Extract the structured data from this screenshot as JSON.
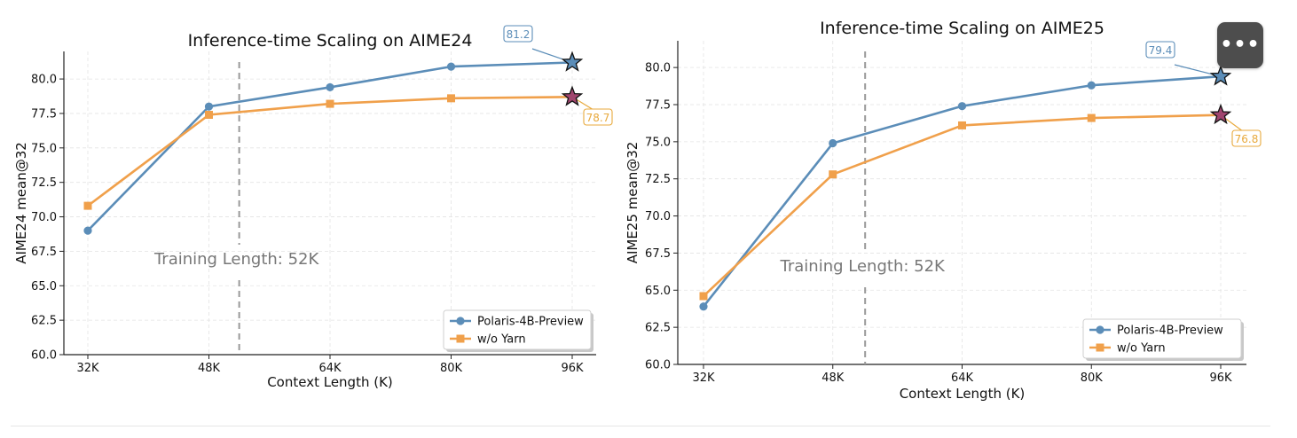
{
  "more_button": {
    "label": "•••",
    "icon": "more-options-icon"
  },
  "chart_data": [
    {
      "type": "line",
      "title": "Inference-time Scaling on AIME24",
      "xlabel": "Context Length (K)",
      "ylabel": "AIME24 mean@32",
      "categories": [
        "32K",
        "48K",
        "64K",
        "80K",
        "96K"
      ],
      "x": [
        32,
        48,
        64,
        80,
        96
      ],
      "ylim": [
        60.0,
        82.0
      ],
      "yticks": [
        60.0,
        62.5,
        65.0,
        67.5,
        70.0,
        72.5,
        75.0,
        77.5,
        80.0
      ],
      "ytick_labels": [
        "60.0",
        "62.5",
        "65.0",
        "67.5",
        "70.0",
        "72.5",
        "75.0",
        "77.5",
        "80.0"
      ],
      "grid": true,
      "legend_position": "bottom-right",
      "series": [
        {
          "name": "Polaris-4B-Preview",
          "values": [
            69.0,
            78.0,
            79.4,
            80.9,
            81.2
          ],
          "color": "#5b8db8",
          "marker": "circle"
        },
        {
          "name": "w/o Yarn",
          "values": [
            70.8,
            77.4,
            78.2,
            78.6,
            78.7
          ],
          "color": "#f0a04b",
          "marker": "square"
        }
      ],
      "annotations": [
        {
          "text": "81.2",
          "series": 0,
          "color": "#5b8db8",
          "marker": "star",
          "star_color": "#5b8db8"
        },
        {
          "text": "78.7",
          "series": 1,
          "color": "#e8a93c",
          "marker": "star",
          "star_color": "#a0456e"
        }
      ],
      "vline": {
        "x": 52,
        "label": "Training Length: 52K"
      }
    },
    {
      "type": "line",
      "title": "Inference-time Scaling on AIME25",
      "xlabel": "Context Length (K)",
      "ylabel": "AIME25 mean@32",
      "categories": [
        "32K",
        "48K",
        "64K",
        "80K",
        "96K"
      ],
      "x": [
        32,
        48,
        64,
        80,
        96
      ],
      "ylim": [
        60.0,
        81.8
      ],
      "yticks": [
        60.0,
        62.5,
        65.0,
        67.5,
        70.0,
        72.5,
        75.0,
        77.5,
        80.0
      ],
      "ytick_labels": [
        "60.0",
        "62.5",
        "65.0",
        "67.5",
        "70.0",
        "72.5",
        "75.0",
        "77.5",
        "80.0"
      ],
      "grid": true,
      "legend_position": "bottom-right",
      "series": [
        {
          "name": "Polaris-4B-Preview",
          "values": [
            63.9,
            74.9,
            77.4,
            78.8,
            79.4
          ],
          "color": "#5b8db8",
          "marker": "circle"
        },
        {
          "name": "w/o Yarn",
          "values": [
            64.6,
            72.8,
            76.1,
            76.6,
            76.8
          ],
          "color": "#f0a04b",
          "marker": "square"
        }
      ],
      "annotations": [
        {
          "text": "79.4",
          "series": 0,
          "color": "#5b8db8",
          "marker": "star",
          "star_color": "#5b8db8"
        },
        {
          "text": "76.8",
          "series": 1,
          "color": "#e8a93c",
          "marker": "star",
          "star_color": "#a0456e"
        }
      ],
      "vline": {
        "x": 52,
        "label": "Training Length: 52K"
      }
    }
  ]
}
